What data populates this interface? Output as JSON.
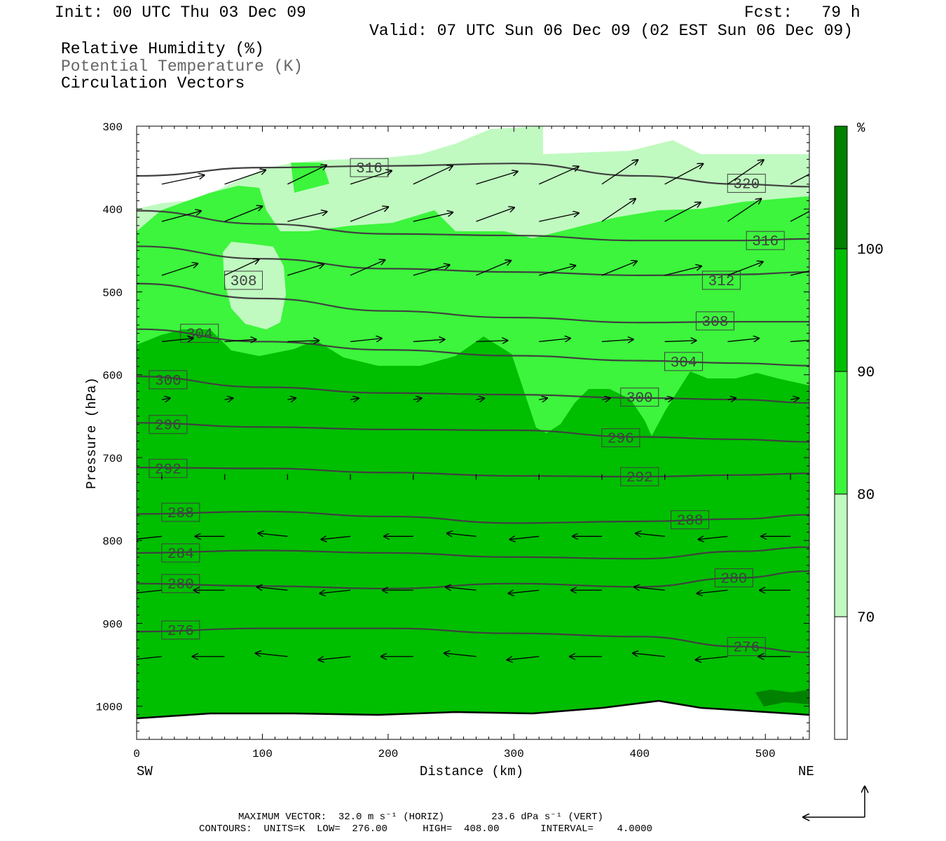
{
  "header": {
    "init": "Init: 00 UTC Thu 03 Dec 09",
    "fcst": "Fcst:   79 h",
    "valid": "Valid: 07 UTC Sun 06 Dec 09 (02 EST Sun 06 Dec 09)",
    "fields": [
      {
        "text": "Relative Humidity (%)",
        "color": "#000000"
      },
      {
        "text": "Potential Temperature (K)",
        "color": "#666666"
      },
      {
        "text": "Circulation Vectors",
        "color": "#000000"
      }
    ]
  },
  "footer": {
    "max_vector": "MAXIMUM VECTOR:  32.0 m s⁻¹ (HORIZ)        23.6 dPa s⁻¹ (VERT)",
    "contours": "CONTOURS:  UNITS=K  LOW=  276.00      HIGH=  408.00       INTERVAL=    4.0000"
  },
  "colors": {
    "rh_70_80": "#c0fac0",
    "rh_80_90": "#3cf53c",
    "rh_90_100": "#00be00",
    "rh_100": "#008200",
    "theta": "#404040"
  },
  "chart_data": {
    "type": "cross-section",
    "xlabel": "Distance (km)",
    "ylabel": "Pressure (hPa)",
    "xlim": [
      0,
      535
    ],
    "ylim": [
      1040,
      300
    ],
    "x_ticks": [
      0,
      100,
      200,
      300,
      400,
      500
    ],
    "y_ticks": [
      300,
      400,
      500,
      600,
      700,
      800,
      900,
      1000
    ],
    "left_end": "SW",
    "right_end": "NE",
    "colorbar": {
      "unit": "%",
      "levels": [
        70,
        80,
        90,
        100
      ],
      "colors": [
        "#ffffff",
        "#c0fac0",
        "#3cf53c",
        "#00be00",
        "#008200"
      ]
    },
    "theta_contours": [
      {
        "value": 276,
        "x": [
          0,
          100,
          200,
          300,
          400,
          480,
          535
        ],
        "p": [
          910,
          906,
          906,
          912,
          916,
          928,
          935
        ],
        "labels": [
          [
            35,
            908
          ],
          [
            485,
            928
          ]
        ]
      },
      {
        "value": 280,
        "x": [
          0,
          100,
          200,
          300,
          400,
          480,
          535
        ],
        "p": [
          852,
          855,
          858,
          852,
          856,
          845,
          837
        ],
        "labels": [
          [
            35,
            852
          ],
          [
            475,
            845
          ]
        ]
      },
      {
        "value": 284,
        "x": [
          0,
          100,
          200,
          300,
          400,
          480,
          535
        ],
        "p": [
          815,
          812,
          815,
          820,
          822,
          813,
          808
        ],
        "labels": [
          [
            35,
            815
          ]
        ]
      },
      {
        "value": 288,
        "x": [
          0,
          100,
          200,
          300,
          400,
          480,
          535
        ],
        "p": [
          768,
          765,
          771,
          779,
          777,
          774,
          769
        ],
        "labels": [
          [
            35,
            766
          ],
          [
            440,
            775
          ]
        ]
      },
      {
        "value": 292,
        "x": [
          0,
          100,
          200,
          300,
          400,
          480,
          535
        ],
        "p": [
          712,
          713,
          718,
          722,
          723,
          721,
          719
        ],
        "labels": [
          [
            25,
            713
          ],
          [
            400,
            723
          ]
        ]
      },
      {
        "value": 296,
        "x": [
          0,
          100,
          200,
          300,
          400,
          480,
          535
        ],
        "p": [
          658,
          663,
          666,
          667,
          675,
          678,
          681
        ],
        "labels": [
          [
            25,
            660
          ],
          [
            385,
            676
          ]
        ]
      },
      {
        "value": 300,
        "x": [
          0,
          100,
          200,
          300,
          400,
          480,
          535
        ],
        "p": [
          602,
          615,
          622,
          624,
          628,
          630,
          634
        ],
        "labels": [
          [
            25,
            606
          ],
          [
            400,
            627
          ]
        ]
      },
      {
        "value": 304,
        "x": [
          0,
          100,
          200,
          300,
          400,
          480,
          535
        ],
        "p": [
          545,
          560,
          570,
          577,
          583,
          586,
          589
        ],
        "labels": [
          [
            50,
            550
          ],
          [
            435,
            584
          ]
        ]
      },
      {
        "value": 308,
        "x": [
          0,
          100,
          200,
          300,
          400,
          480,
          535
        ],
        "p": [
          490,
          508,
          523,
          531,
          537,
          536,
          536
        ],
        "labels": [
          [
            85,
            486
          ],
          [
            460,
            535
          ]
        ]
      },
      {
        "value": 312,
        "x": [
          0,
          100,
          200,
          300,
          400,
          480,
          535
        ],
        "p": [
          445,
          460,
          472,
          476,
          480,
          479,
          476
        ],
        "labels": [
          [
            465,
            486
          ]
        ]
      },
      {
        "value": 316,
        "x": [
          0,
          100,
          200,
          300,
          400,
          480,
          535
        ],
        "p": [
          402,
          418,
          430,
          432,
          438,
          438,
          436
        ],
        "labels": [
          [
            185,
            350
          ],
          [
            500,
            438
          ]
        ]
      },
      {
        "value": 320,
        "x": [
          0,
          100,
          200,
          300,
          400,
          480,
          535
        ],
        "p": [
          360,
          350,
          348,
          345,
          360,
          370,
          373
        ],
        "labels": [
          [
            485,
            369
          ]
        ]
      }
    ],
    "rh_regions_note": "filled shading 70-80, 80-90, 90-100, >100 percent",
    "vectors": {
      "levels_hPa": [
        370,
        415,
        480,
        560,
        630,
        720,
        795,
        860,
        940
      ],
      "x_km": [
        20,
        70,
        120,
        170,
        220,
        270,
        320,
        370,
        420,
        470,
        520
      ],
      "direction_note": "upper-level vectors point toward NE with rising motion; lower levels (below 780 hPa) point toward SW"
    }
  }
}
